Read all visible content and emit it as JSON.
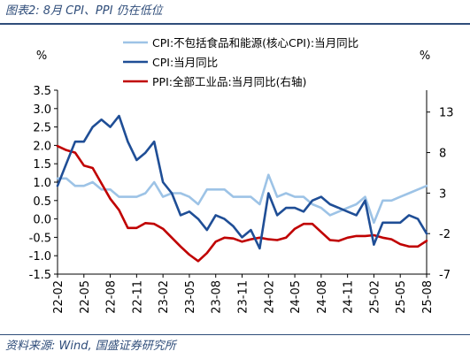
{
  "figure_title": "图表2:  8月 CPI、PPI 仍在低位",
  "source": "资料来源:  Wind,  国盛证券研究所",
  "chart_data": {
    "type": "line",
    "left_unit": "%",
    "right_unit": "%",
    "left_ylim": [
      -1.5,
      3.5
    ],
    "left_ticks": [
      "3.5",
      "3.0",
      "2.5",
      "2.0",
      "1.5",
      "1.0",
      "0.5",
      "0.0",
      "-0.5",
      "-1.0",
      "-1.5"
    ],
    "right_ylim": [
      -7,
      15.7
    ],
    "right_ticks": [
      "13",
      "8",
      "3",
      "-2",
      "-7"
    ],
    "x_tick_labels": [
      "22-02",
      "22-05",
      "22-08",
      "22-11",
      "23-02",
      "23-05",
      "23-08",
      "23-11",
      "24-02",
      "24-05",
      "24-08",
      "24-11",
      "25-02",
      "25-05",
      "25-08"
    ],
    "x": [
      "22-02",
      "22-03",
      "22-04",
      "22-05",
      "22-06",
      "22-07",
      "22-08",
      "22-09",
      "22-10",
      "22-11",
      "22-12",
      "23-01",
      "23-02",
      "23-03",
      "23-04",
      "23-05",
      "23-06",
      "23-07",
      "23-08",
      "23-09",
      "23-10",
      "23-11",
      "23-12",
      "24-01",
      "24-02",
      "24-03",
      "24-04",
      "24-05",
      "24-06",
      "24-07",
      "24-08",
      "24-09",
      "24-10",
      "24-11",
      "24-12",
      "25-01",
      "25-02",
      "25-03",
      "25-04",
      "25-05",
      "25-06",
      "25-07",
      "25-08"
    ],
    "legend_position": "top",
    "series": [
      {
        "name": "CPI:不包括食品和能源(核心CPI):当月同比",
        "axis": "left",
        "color": "#9dc3e6",
        "values": [
          1.1,
          1.1,
          0.9,
          0.9,
          1.0,
          0.8,
          0.8,
          0.6,
          0.6,
          0.6,
          0.7,
          1.0,
          0.6,
          0.7,
          0.7,
          0.6,
          0.4,
          0.8,
          0.8,
          0.8,
          0.6,
          0.6,
          0.6,
          0.4,
          1.2,
          0.6,
          0.7,
          0.6,
          0.6,
          0.4,
          0.3,
          0.1,
          0.2,
          0.3,
          0.4,
          0.6,
          -0.1,
          0.5,
          0.5,
          0.6,
          0.7,
          0.8,
          0.9
        ]
      },
      {
        "name": "CPI:当月同比",
        "axis": "left",
        "color": "#1f4e96",
        "values": [
          0.9,
          1.5,
          2.1,
          2.1,
          2.5,
          2.7,
          2.5,
          2.8,
          2.1,
          1.6,
          1.8,
          2.1,
          1.0,
          0.7,
          0.1,
          0.2,
          0.0,
          -0.3,
          0.1,
          0.0,
          -0.2,
          -0.5,
          -0.3,
          -0.8,
          0.7,
          0.1,
          0.3,
          0.3,
          0.2,
          0.5,
          0.6,
          0.4,
          0.3,
          0.2,
          0.1,
          0.5,
          -0.7,
          -0.1,
          -0.1,
          -0.1,
          0.1,
          0.0,
          -0.4
        ]
      },
      {
        "name": "PPI:全部工业品:当月同比(右轴)",
        "axis": "right",
        "color": "#c00000",
        "values": [
          8.8,
          8.3,
          8.0,
          6.4,
          6.1,
          4.2,
          2.3,
          0.9,
          -1.3,
          -1.3,
          -0.7,
          -0.8,
          -1.4,
          -2.5,
          -3.6,
          -4.6,
          -5.4,
          -4.4,
          -3.0,
          -2.5,
          -2.6,
          -3.0,
          -2.7,
          -2.5,
          -2.7,
          -2.8,
          -2.5,
          -1.4,
          -0.8,
          -0.8,
          -1.8,
          -2.8,
          -2.9,
          -2.5,
          -2.3,
          -2.3,
          -2.2,
          -2.5,
          -2.7,
          -3.3,
          -3.6,
          -3.6,
          -2.9
        ]
      }
    ]
  }
}
